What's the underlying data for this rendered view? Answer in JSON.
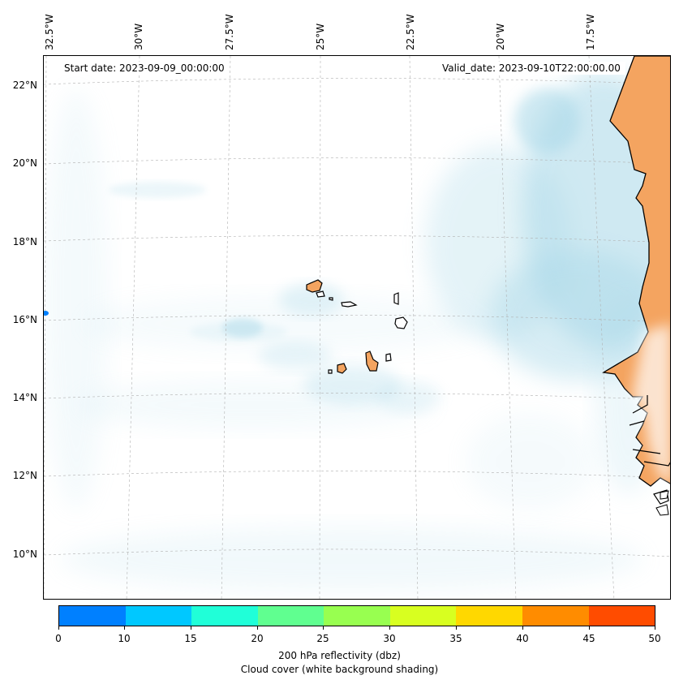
{
  "header": {
    "start_date": "Start date: 2023-09-09_00:00:00",
    "valid_date": "Valid_date: 2023-09-10T22:00:00.00"
  },
  "axes": {
    "lon_labels": [
      "32.5°W",
      "30°W",
      "27.5°W",
      "25°W",
      "22.5°W",
      "20°W",
      "17.5°W"
    ],
    "lat_labels": [
      "22°N",
      "20°N",
      "18°N",
      "16°N",
      "14°N",
      "12°N",
      "10°N"
    ]
  },
  "colorbar": {
    "ticks": [
      "0",
      "10",
      "15",
      "20",
      "25",
      "30",
      "35",
      "40",
      "45",
      "50"
    ],
    "colors": [
      "#0080ff",
      "#00c8ff",
      "#20ffd8",
      "#60ff90",
      "#98ff50",
      "#d8ff20",
      "#ffd800",
      "#ff8c00",
      "#ff4c00"
    ],
    "title": "200 hPa reflectivity (dbz)",
    "subtitle": "Cloud cover (white background shading)"
  },
  "map": {
    "land_color": "#f4a460",
    "cloud_color": "#a8d8e8",
    "grid": true
  }
}
